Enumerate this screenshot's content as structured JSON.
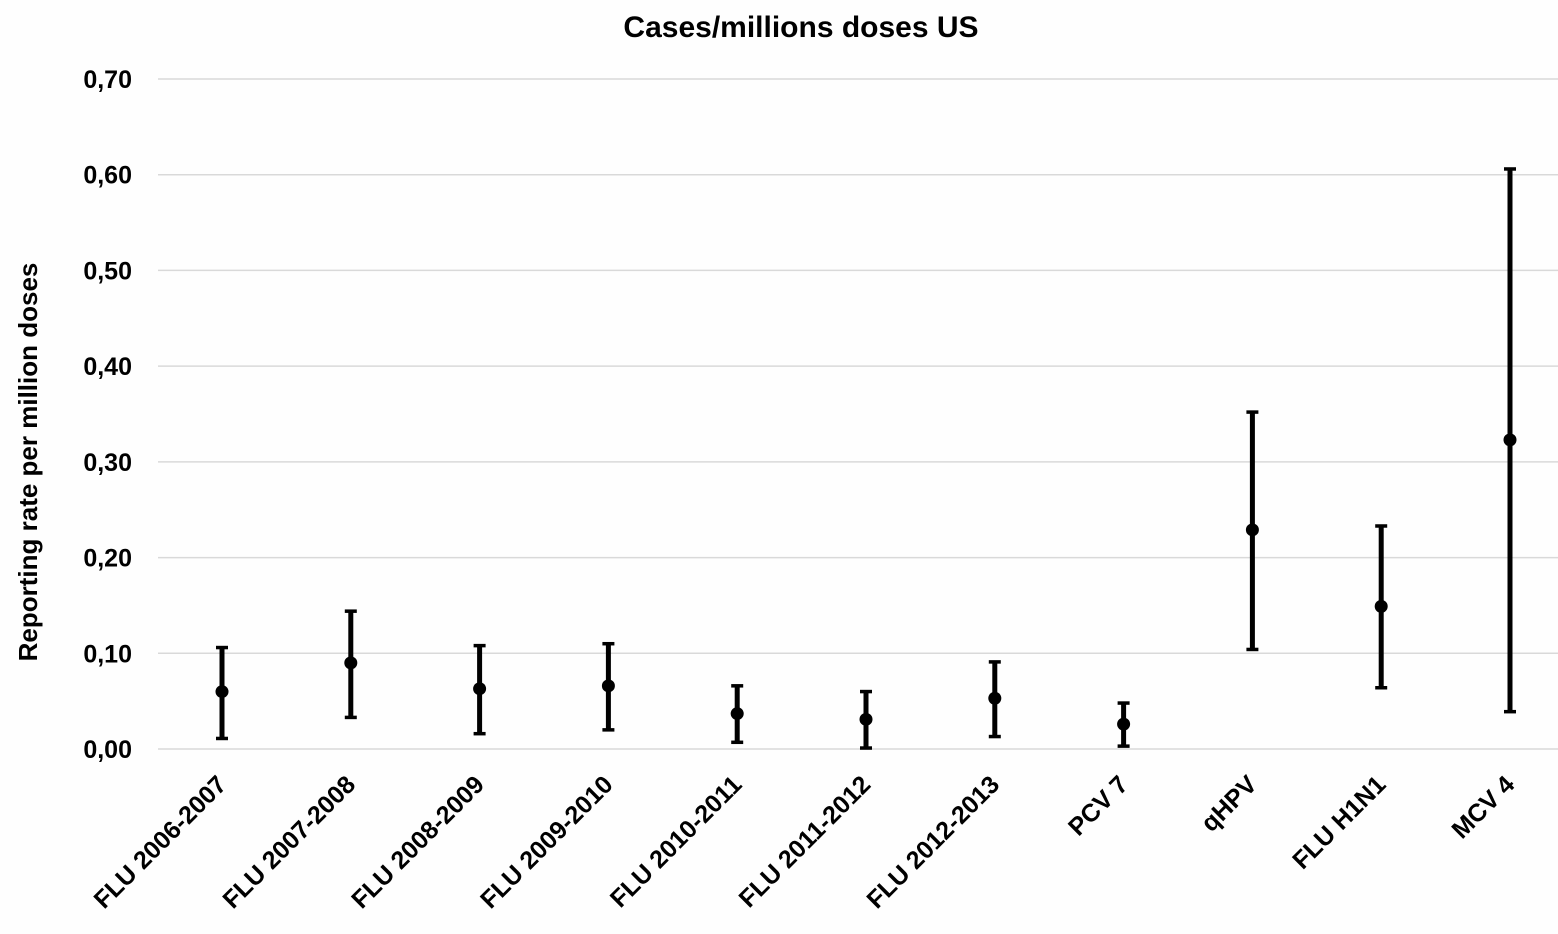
{
  "chart_data": {
    "type": "scatter",
    "title": "Cases/millions doses US",
    "xlabel": "",
    "ylabel": "Reporting rate per million doses",
    "ylim": [
      0,
      0.7
    ],
    "yticks": [
      "0,00",
      "0,10",
      "0,20",
      "0,30",
      "0,40",
      "0,50",
      "0,60",
      "0,70"
    ],
    "categories": [
      "FLU 2006-2007",
      "FLU 2007-2008",
      "FLU 2008-2009",
      "FLU 2009-2010",
      "FLU 2010-2011",
      "FLU 2011-2012",
      "FLU 2012-2013",
      "PCV 7",
      "qHPV",
      "FLU H1N1",
      "MCV 4"
    ],
    "values": [
      0.06,
      0.09,
      0.063,
      0.066,
      0.037,
      0.031,
      0.053,
      0.026,
      0.229,
      0.149,
      0.323
    ],
    "lower": [
      0.011,
      0.033,
      0.016,
      0.02,
      0.007,
      0.001,
      0.013,
      0.003,
      0.104,
      0.064,
      0.039
    ],
    "upper": [
      0.106,
      0.144,
      0.108,
      0.11,
      0.066,
      0.06,
      0.091,
      0.048,
      0.352,
      0.233,
      0.606
    ],
    "grid": true,
    "marker_color": "#000000"
  }
}
